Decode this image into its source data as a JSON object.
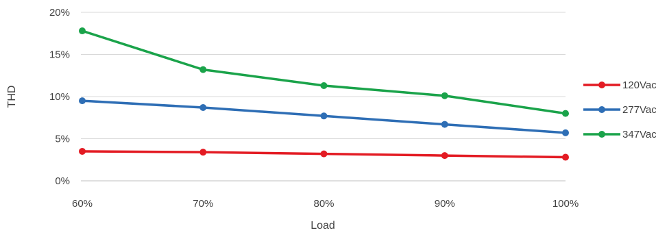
{
  "chart_data": {
    "type": "line",
    "title": "",
    "xlabel": "Load",
    "ylabel": "THD",
    "categories": [
      "60%",
      "70%",
      "80%",
      "90%",
      "100%"
    ],
    "y_ticks": [
      "0%",
      "5%",
      "10%",
      "15%",
      "20%"
    ],
    "ylim": [
      0,
      20
    ],
    "grid": "horizontal",
    "legend_position": "right",
    "series": [
      {
        "name": "120Vac",
        "color": "#e31b23",
        "values": [
          3.5,
          3.4,
          3.2,
          3.0,
          2.8
        ]
      },
      {
        "name": "277Vac",
        "color": "#2e6eb5",
        "values": [
          9.5,
          8.7,
          7.7,
          6.7,
          5.7
        ]
      },
      {
        "name": "347Vac",
        "color": "#1aa34a",
        "values": [
          17.8,
          13.2,
          11.3,
          10.1,
          8.0
        ]
      }
    ]
  }
}
